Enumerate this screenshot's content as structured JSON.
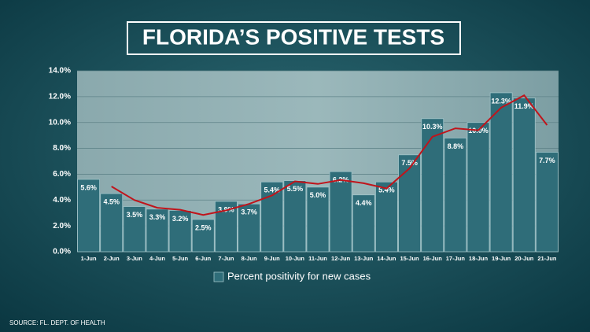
{
  "chart_data": {
    "type": "bar",
    "title": "FLORIDA’S POSITIVE TESTS",
    "source": "SOURCE: FL. DEPT. OF HEALTH",
    "categories": [
      "1-Jun",
      "2-Jun",
      "3-Jun",
      "4-Jun",
      "5-Jun",
      "6-Jun",
      "7-Jun",
      "8-Jun",
      "9-Jun",
      "10-Jun",
      "11-Jun",
      "12-Jun",
      "13-Jun",
      "14-Jun",
      "15-Jun",
      "16-Jun",
      "17-Jun",
      "18-Jun",
      "19-Jun",
      "20-Jun",
      "21-Jun"
    ],
    "series": [
      {
        "name": "Percent positivity for new cases",
        "color": "#2f6d79",
        "values": [
          5.6,
          4.5,
          3.5,
          3.3,
          3.2,
          2.5,
          3.9,
          3.7,
          5.4,
          5.5,
          5.0,
          6.2,
          4.4,
          5.4,
          7.5,
          10.3,
          8.8,
          10.0,
          12.3,
          11.9,
          7.7
        ],
        "value_labels": [
          "5.6%",
          "4.5%",
          "3.5%",
          "3.3%",
          "3.2%",
          "2.5%",
          "3.9%",
          "3.7%",
          "5.4%",
          "5.5%",
          "5.0%",
          "6.2%",
          "4.4%",
          "5.4%",
          "7.5%",
          "10.3%",
          "8.8%",
          "10.0%",
          "12.3%",
          "11.9%",
          "7.7%"
        ]
      },
      {
        "type": "line",
        "color": "#c0141b",
        "values": [
          null,
          5.05,
          4.0,
          3.4,
          3.25,
          2.85,
          3.2,
          3.7,
          4.35,
          5.45,
          5.25,
          5.55,
          5.3,
          4.9,
          6.45,
          8.9,
          9.55,
          9.4,
          11.15,
          12.1,
          9.8
        ]
      }
    ],
    "ylim": [
      0,
      14
    ],
    "yticks": [
      {
        "value": 0,
        "label": "0.0%"
      },
      {
        "value": 2,
        "label": "2.0%"
      },
      {
        "value": 4,
        "label": "4.0%"
      },
      {
        "value": 6,
        "label": "6.0%"
      },
      {
        "value": 8,
        "label": "8.0%"
      },
      {
        "value": 10,
        "label": "10.0%"
      },
      {
        "value": 12,
        "label": "12.0%"
      },
      {
        "value": 14,
        "label": "14.0%"
      }
    ],
    "grid": true,
    "legend": "bottom"
  }
}
